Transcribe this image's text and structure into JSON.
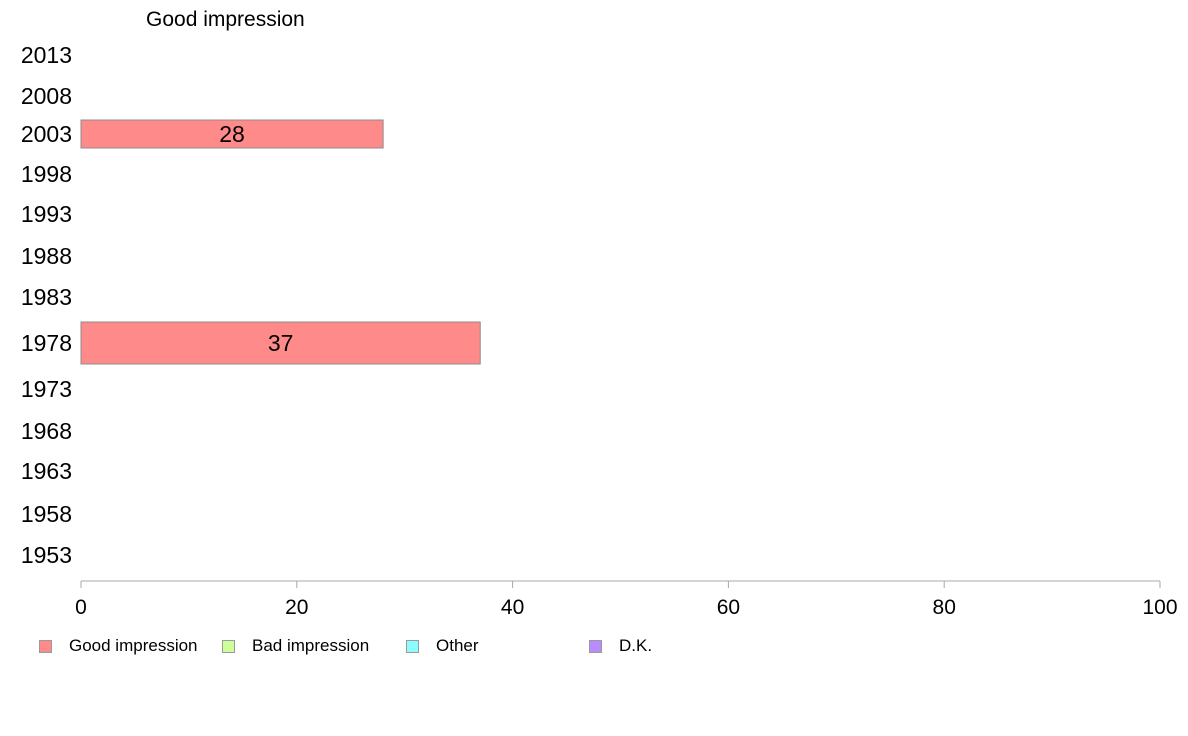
{
  "chart_data": {
    "type": "bar",
    "orientation": "horizontal",
    "title": "Good impression",
    "categories": [
      "2013",
      "2008",
      "2003",
      "1998",
      "1993",
      "1988",
      "1983",
      "1978",
      "1973",
      "1968",
      "1963",
      "1958",
      "1953"
    ],
    "series": [
      {
        "name": "Good impression",
        "color": "#ff8a8a",
        "values": [
          null,
          null,
          28,
          null,
          null,
          null,
          null,
          37,
          null,
          null,
          null,
          null,
          null
        ]
      }
    ],
    "xlim": [
      0,
      100
    ],
    "x_ticks": [
      0,
      20,
      40,
      60,
      80,
      100
    ],
    "x_tick_labels": [
      "0",
      "20",
      "40",
      "60",
      "80",
      "100"
    ],
    "grid": false,
    "legend": {
      "position": "bottom",
      "items": [
        {
          "label": "Good impression",
          "color": "#ff8a8a"
        },
        {
          "label": "Bad impression",
          "color": "#ccff99"
        },
        {
          "label": "Other",
          "color": "#8cfcfc"
        },
        {
          "label": "D.K.",
          "color": "#b88cff"
        }
      ]
    }
  }
}
